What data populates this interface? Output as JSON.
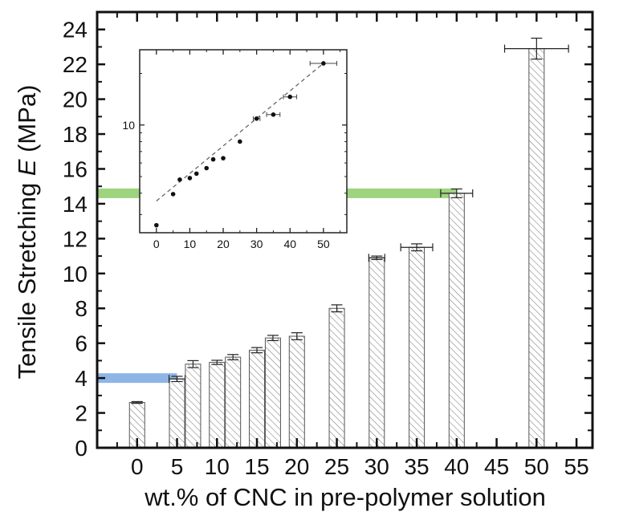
{
  "chart_data": [
    {
      "type": "bar",
      "xlabel": "wt.% of CNC in pre-polymer solution",
      "ylabel_prefix": "Tensile Stretching ",
      "ylabel_symbol": "E",
      "ylabel_unit": " (MPa)",
      "xlim": [
        -5,
        57
      ],
      "ylim": [
        0,
        25
      ],
      "x_ticks": [
        0,
        5,
        10,
        15,
        20,
        25,
        30,
        35,
        40,
        45,
        50,
        55
      ],
      "y_ticks": [
        0,
        2,
        4,
        6,
        8,
        10,
        12,
        14,
        16,
        18,
        20,
        22,
        24
      ],
      "bars": [
        {
          "x": 0,
          "value": 2.6,
          "yerr": 0.05,
          "xerr": 0
        },
        {
          "x": 5,
          "value": 3.95,
          "yerr": 0.15,
          "xerr": 1.0
        },
        {
          "x": 7,
          "value": 4.8,
          "yerr": 0.2,
          "xerr": 0
        },
        {
          "x": 10,
          "value": 4.9,
          "yerr": 0.12,
          "xerr": 0
        },
        {
          "x": 12,
          "value": 5.2,
          "yerr": 0.15,
          "xerr": 0
        },
        {
          "x": 15,
          "value": 5.6,
          "yerr": 0.15,
          "xerr": 0
        },
        {
          "x": 17,
          "value": 6.3,
          "yerr": 0.15,
          "xerr": 0
        },
        {
          "x": 20,
          "value": 6.4,
          "yerr": 0.2,
          "xerr": 0
        },
        {
          "x": 25,
          "value": 8.0,
          "yerr": 0.2,
          "xerr": 0
        },
        {
          "x": 30,
          "value": 10.9,
          "yerr": 0.1,
          "xerr": 1.0
        },
        {
          "x": 35,
          "value": 11.5,
          "yerr": 0.2,
          "xerr": 2.0
        },
        {
          "x": 40,
          "value": 14.6,
          "yerr": 0.25,
          "xerr": 2.0
        },
        {
          "x": 50,
          "value": 22.9,
          "yerr": 0.6,
          "xerr": 4.0
        }
      ],
      "highlight_bands": [
        {
          "y": 4.0,
          "x_from": -5,
          "x_to": 5,
          "color": "#8fb5e6"
        },
        {
          "y": 14.6,
          "x_from": -5,
          "x_to": 40,
          "color": "#9ed47e"
        }
      ],
      "bar_fill": "#ffffff",
      "hatch_color": "#777777"
    },
    {
      "type": "scatter",
      "xlim": [
        -5,
        57
      ],
      "y_log": true,
      "x_ticks": [
        0,
        10,
        20,
        30,
        40,
        50
      ],
      "y_ticks": [
        10
      ],
      "points": [
        {
          "x": 0,
          "y": 2.6,
          "xerr": 0
        },
        {
          "x": 5,
          "y": 3.95,
          "xerr": 0
        },
        {
          "x": 7,
          "y": 4.8,
          "xerr": 0
        },
        {
          "x": 10,
          "y": 4.9,
          "xerr": 0
        },
        {
          "x": 12,
          "y": 5.2,
          "xerr": 0
        },
        {
          "x": 15,
          "y": 5.6,
          "xerr": 0
        },
        {
          "x": 17,
          "y": 6.3,
          "xerr": 0
        },
        {
          "x": 20,
          "y": 6.4,
          "xerr": 0
        },
        {
          "x": 25,
          "y": 8.0,
          "xerr": 0
        },
        {
          "x": 30,
          "y": 10.9,
          "xerr": 1.0
        },
        {
          "x": 35,
          "y": 11.5,
          "xerr": 2.0
        },
        {
          "x": 40,
          "y": 14.6,
          "xerr": 2.0
        },
        {
          "x": 50,
          "y": 22.9,
          "xerr": 4.0
        }
      ],
      "fit_line": {
        "x": [
          0,
          50
        ],
        "y": [
          3.6,
          22.9
        ],
        "dashed": true
      }
    }
  ]
}
